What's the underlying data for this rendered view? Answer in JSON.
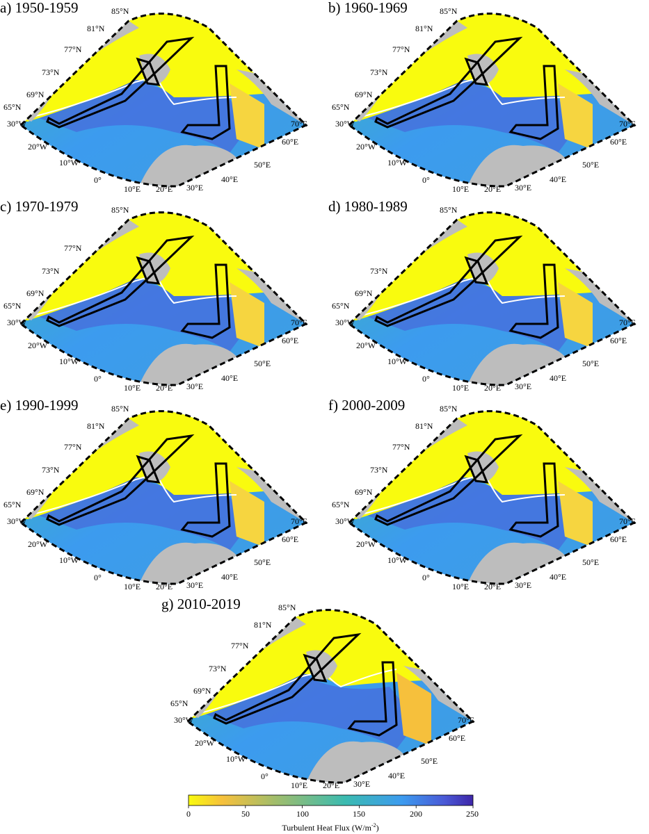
{
  "panels": [
    {
      "title": "a) 1950-1959"
    },
    {
      "title": "b) 1960-1969"
    },
    {
      "title": "c) 1970-1979"
    },
    {
      "title": "d) 1980-1989"
    },
    {
      "title": "e) 1990-1999"
    },
    {
      "title": "f) 2000-2009"
    },
    {
      "title": "g) 2010-2019"
    }
  ],
  "latitude_labels": [
    "65°N",
    "69°N",
    "73°N",
    "77°N",
    "81°N",
    "85°N"
  ],
  "longitude_labels": [
    "30°W",
    "20°W",
    "10°W",
    "0°",
    "10°E",
    "20°E",
    "30°E",
    "40°E",
    "50°E",
    "60°E",
    "70°E"
  ],
  "colorbar": {
    "ticks": [
      "0",
      "50",
      "100",
      "150",
      "200",
      "250"
    ],
    "label": "Turbulent Heat Flux (W/m",
    "label_sup": "-2",
    "label_end": ")",
    "colors": [
      "#f9fb0e",
      "#f6c03c",
      "#a3bd6a",
      "#3bbbb0",
      "#3c9bef",
      "#4a59d6",
      "#3e26a8"
    ]
  }
}
